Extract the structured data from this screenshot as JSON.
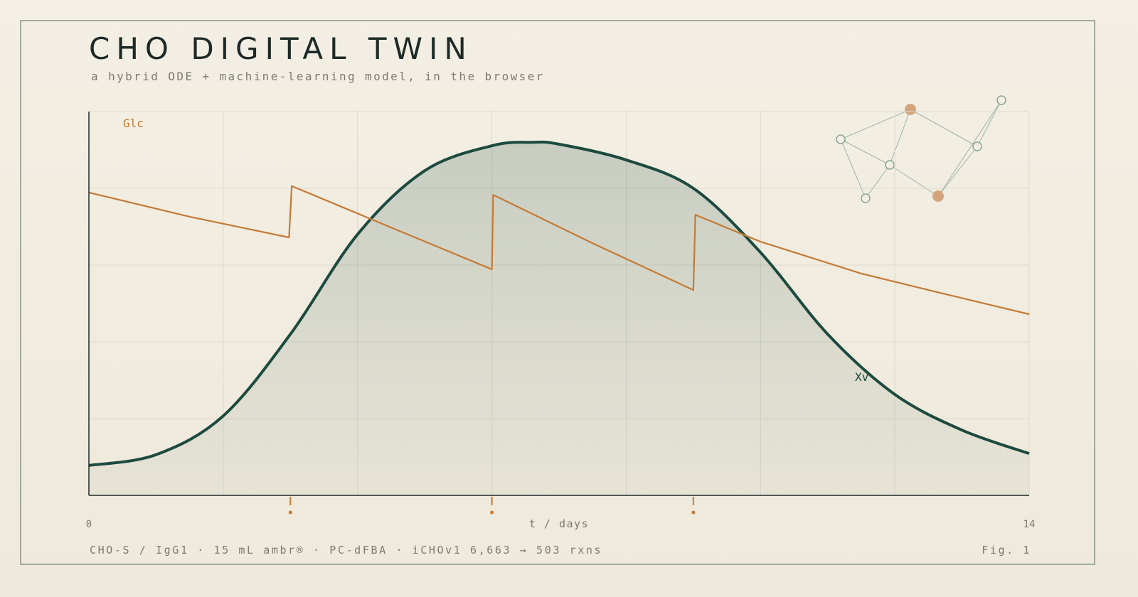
{
  "chart_data": {
    "type": "line",
    "title": "CHO DIGITAL TWIN",
    "subtitle": "a hybrid ODE + machine-learning model, in the browser",
    "x_label": "t / days",
    "footer": "CHO-S / IgG1 · 15 mL ambr® · PC-dFBA · iCHOv1 6,663 → 503 rxns",
    "figure_label": "Fig. 1",
    "xlim": [
      0,
      14
    ],
    "xticks": [
      0,
      14
    ],
    "xgrid": [
      0,
      2,
      4,
      6,
      8,
      10,
      12,
      14
    ],
    "ylim": [
      0,
      1
    ],
    "yticks": [
      0,
      0.2,
      0.4,
      0.6,
      0.8,
      1
    ],
    "ytick_labels": false,
    "grid": true,
    "feeds": [
      3,
      6,
      9
    ],
    "feed_color": "#c47a35",
    "series": [
      {
        "name": "Xv",
        "color": "#1c4a3e",
        "area": true,
        "x": [
          0,
          1,
          2,
          3,
          4,
          5,
          6,
          6.6,
          7,
          8,
          9,
          10,
          11,
          12,
          13,
          14
        ],
        "values": [
          0.078,
          0.106,
          0.207,
          0.42,
          0.68,
          0.846,
          0.911,
          0.92,
          0.915,
          0.874,
          0.8,
          0.633,
          0.42,
          0.263,
          0.17,
          0.109
        ]
      },
      {
        "name": "Glc",
        "color": "#c47a35",
        "area": false,
        "x": [
          0,
          1.5,
          2.98,
          3.02,
          4.5,
          6,
          6.02,
          7.5,
          9,
          9.03,
          10,
          11.5,
          12.5,
          14
        ],
        "values": [
          0.789,
          0.726,
          0.672,
          0.806,
          0.698,
          0.589,
          0.783,
          0.657,
          0.535,
          0.731,
          0.661,
          0.578,
          0.535,
          0.472
        ]
      }
    ]
  }
}
